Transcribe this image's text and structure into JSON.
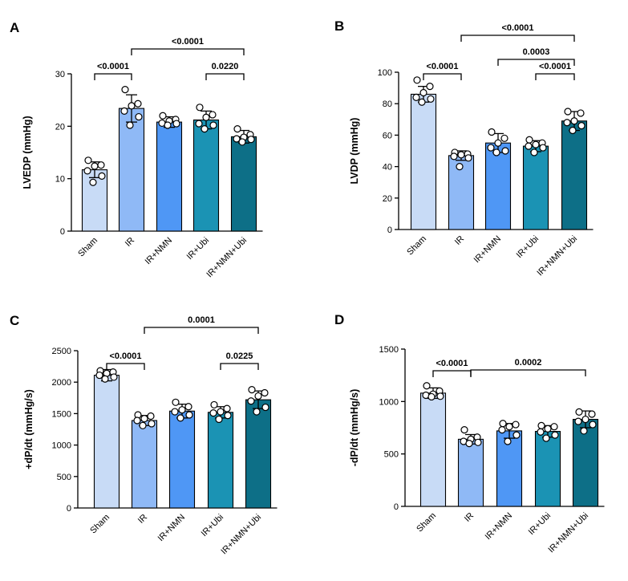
{
  "colors": {
    "Sham": "#c8dbf6",
    "IR": "#8fb9f6",
    "IR+NMN": "#4f97f5",
    "IR+Ubi": "#1b93b4",
    "IR+NMN+Ubi": "#0d6f87",
    "axis": "#000000"
  },
  "chart_data": [
    {
      "type": "bar",
      "letter": "A",
      "ylabel": "LVEDP (mmHg)",
      "ylim": [
        0,
        30
      ],
      "yticks": [
        0,
        10,
        20,
        30
      ],
      "categories": [
        "Sham",
        "IR",
        "IR+NMN",
        "IR+Ubi",
        "IR+NMN+Ubi"
      ],
      "values": [
        11.7,
        23.4,
        20.8,
        21.2,
        18.0
      ],
      "errors": [
        1.5,
        2.6,
        1.0,
        1.7,
        1.2
      ],
      "points": [
        [
          13.5,
          12.6,
          12.4,
          11.5,
          10.5,
          9.3
        ],
        [
          27.0,
          24.3,
          23.9,
          22.9,
          21.8,
          20.2
        ],
        [
          22.0,
          21.3,
          21.0,
          20.6,
          20.5,
          20.2
        ],
        [
          23.6,
          22.2,
          21.7,
          20.5,
          20.2,
          19.5
        ],
        [
          19.5,
          18.4,
          17.9,
          17.6,
          17.5,
          17.0
        ]
      ],
      "comparisons": [
        {
          "from": 0,
          "to": 1,
          "label": "<0.0001",
          "level": 1
        },
        {
          "from": 3,
          "to": 4,
          "label": "0.0220",
          "level": 1
        },
        {
          "from": 1,
          "to": 4,
          "label": "<0.0001",
          "level": 2
        }
      ]
    },
    {
      "type": "bar",
      "letter": "B",
      "ylabel": "LVDP (mmHg)",
      "ylim": [
        0,
        100
      ],
      "yticks": [
        0,
        20,
        40,
        60,
        80,
        100
      ],
      "categories": [
        "Sham",
        "IR",
        "IR+NMN",
        "IR+Ubi",
        "IR+NMN+Ubi"
      ],
      "values": [
        86,
        47,
        55,
        53,
        69
      ],
      "errors": [
        5,
        3,
        6,
        3.5,
        6
      ],
      "points": [
        [
          95,
          91,
          87,
          84,
          83,
          81
        ],
        [
          49,
          48,
          47.5,
          46.5,
          45.5,
          40
        ],
        [
          62,
          58,
          55,
          52,
          50,
          49
        ],
        [
          57,
          55,
          54,
          53,
          52,
          49
        ],
        [
          75,
          74,
          69,
          68,
          66,
          63
        ]
      ],
      "comparisons": [
        {
          "from": 0,
          "to": 1,
          "label": "<0.0001",
          "level": 1
        },
        {
          "from": 3,
          "to": 4,
          "label": "<0.0001",
          "level": 1
        },
        {
          "from": 2,
          "to": 4,
          "label": "0.0003",
          "level": 2
        },
        {
          "from": 1,
          "to": 4,
          "label": "<0.0001",
          "level": 3
        }
      ]
    },
    {
      "type": "bar",
      "letter": "C",
      "ylabel": "+dP/dt (mmHg/s)",
      "ylim": [
        0,
        2500
      ],
      "yticks": [
        0,
        500,
        1000,
        1500,
        2000,
        2500
      ],
      "categories": [
        "Sham",
        "IR",
        "IR+NMN",
        "IR+Ubi",
        "IR+NMN+Ubi"
      ],
      "values": [
        2110,
        1390,
        1540,
        1520,
        1720
      ],
      "errors": [
        90,
        80,
        110,
        90,
        140
      ],
      "points": [
        [
          2180,
          2160,
          2140,
          2110,
          2080,
          2050
        ],
        [
          1480,
          1460,
          1420,
          1390,
          1340,
          1310
        ],
        [
          1680,
          1610,
          1560,
          1530,
          1480,
          1430
        ],
        [
          1640,
          1580,
          1530,
          1510,
          1470,
          1410
        ],
        [
          1880,
          1830,
          1780,
          1700,
          1600,
          1530
        ]
      ],
      "comparisons": [
        {
          "from": 0,
          "to": 1,
          "label": "<0.0001",
          "level": 1
        },
        {
          "from": 3,
          "to": 4,
          "label": "0.0225",
          "level": 1
        },
        {
          "from": 1,
          "to": 4,
          "label": "0.0001",
          "level": 2
        }
      ]
    },
    {
      "type": "bar",
      "letter": "D",
      "ylabel": "-dP/dt (mmHg/s)",
      "ylim": [
        0,
        1500
      ],
      "yticks": [
        0,
        500,
        1000,
        1500
      ],
      "categories": [
        "Sham",
        "IR",
        "IR+NMN",
        "IR+Ubi",
        "IR+NMN+Ubi"
      ],
      "values": [
        1080,
        640,
        720,
        715,
        830
      ],
      "errors": [
        50,
        45,
        70,
        55,
        80
      ],
      "points": [
        [
          1150,
          1100,
          1070,
          1060,
          1050,
          1045
        ],
        [
          730,
          660,
          640,
          620,
          610,
          600
        ],
        [
          790,
          780,
          760,
          730,
          680,
          620
        ],
        [
          770,
          760,
          740,
          710,
          680,
          650
        ],
        [
          900,
          880,
          830,
          810,
          780,
          720
        ]
      ],
      "comparisons": [
        {
          "from": 0,
          "to": 1,
          "label": "<0.0001",
          "level": 1
        },
        {
          "from": 1,
          "to": 4,
          "label": "0.0002",
          "level": 2
        }
      ]
    }
  ]
}
